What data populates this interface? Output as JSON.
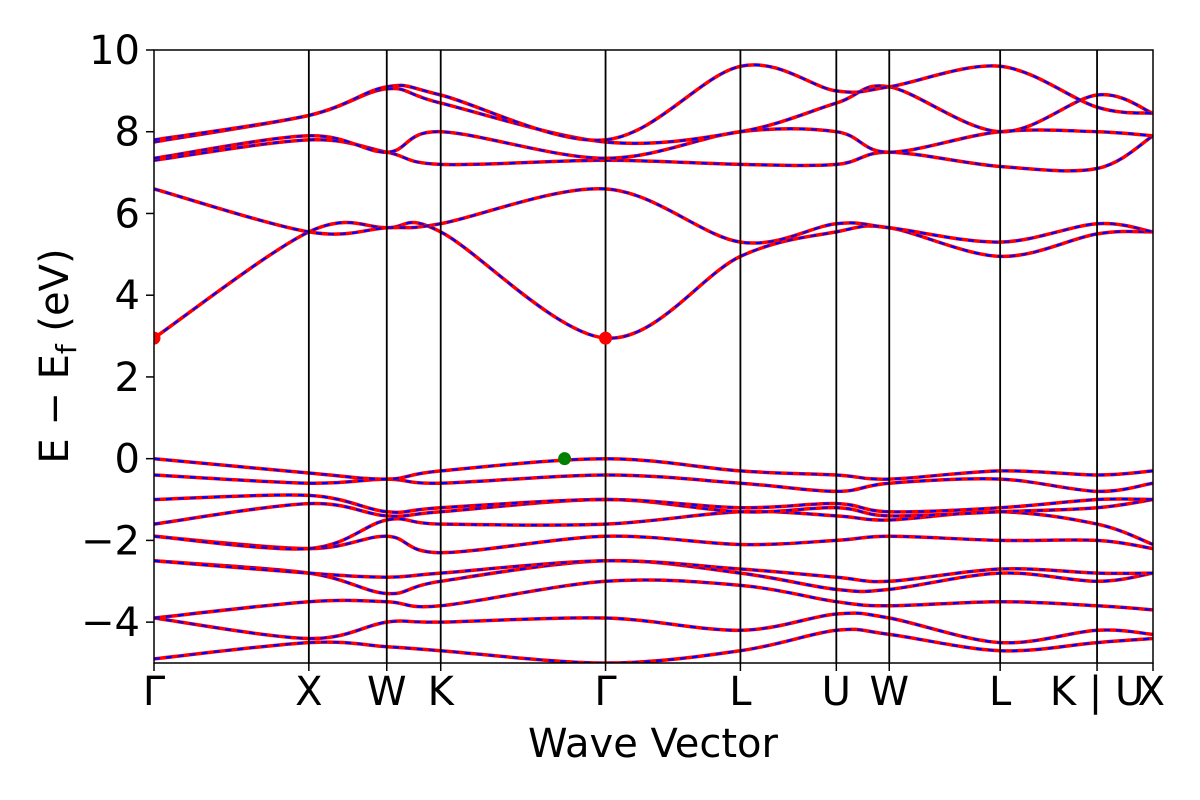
{
  "chart_data": {
    "type": "line",
    "title": "",
    "xlabel": "Wave Vector",
    "ylabel": "E − E",
    "ylabel_sub": "f",
    "ylabel_unit": " (eV)",
    "ylim": [
      -5,
      10
    ],
    "yticks": [
      -4,
      -2,
      0,
      2,
      4,
      6,
      8,
      10
    ],
    "ytick_labels": [
      "−4",
      "−2",
      "0",
      "2",
      "4",
      "6",
      "8",
      "10"
    ],
    "grid": false,
    "kpath": [
      {
        "label": "Γ",
        "k": 0.0
      },
      {
        "label": "X",
        "k": 0.155
      },
      {
        "label": "W",
        "k": 0.233
      },
      {
        "label": "K",
        "k": 0.287
      },
      {
        "label": "Γ",
        "k": 0.452
      },
      {
        "label": "L",
        "k": 0.587
      },
      {
        "label": "U",
        "k": 0.683
      },
      {
        "label": "W",
        "k": 0.736
      },
      {
        "label": "L",
        "k": 0.847
      },
      {
        "label": "K | U",
        "k": 0.944
      },
      {
        "label": "X",
        "k": 1.0
      }
    ],
    "colors": {
      "line_a": "#ff0000",
      "line_b": "#0000ff",
      "vbm": "#008000",
      "cbm": "#ff0000"
    },
    "vbm_point": {
      "k": 0.411,
      "E": 0.0
    },
    "cbm_points": [
      {
        "k": 0.0,
        "E": 2.95
      },
      {
        "k": 0.452,
        "E": 2.95
      }
    ],
    "bands": [
      [
        [
          0,
          -4.9
        ],
        [
          0.155,
          -4.5
        ],
        [
          0.233,
          -4.6
        ],
        [
          0.287,
          -4.7
        ],
        [
          0.452,
          -5.0
        ],
        [
          0.587,
          -4.7
        ],
        [
          0.683,
          -4.2
        ],
        [
          0.736,
          -4.3
        ],
        [
          0.847,
          -4.7
        ],
        [
          0.944,
          -4.5
        ],
        [
          1,
          -4.4
        ]
      ],
      [
        [
          0,
          -3.9
        ],
        [
          0.155,
          -4.4
        ],
        [
          0.233,
          -4.0
        ],
        [
          0.287,
          -4.0
        ],
        [
          0.452,
          -3.9
        ],
        [
          0.587,
          -4.2
        ],
        [
          0.683,
          -3.8
        ],
        [
          0.736,
          -3.9
        ],
        [
          0.847,
          -4.5
        ],
        [
          0.944,
          -4.2
        ],
        [
          1,
          -4.3
        ]
      ],
      [
        [
          0,
          -3.9
        ],
        [
          0.155,
          -3.5
        ],
        [
          0.233,
          -3.5
        ],
        [
          0.287,
          -3.6
        ],
        [
          0.452,
          -3.0
        ],
        [
          0.587,
          -3.1
        ],
        [
          0.683,
          -3.5
        ],
        [
          0.736,
          -3.6
        ],
        [
          0.847,
          -3.5
        ],
        [
          0.944,
          -3.6
        ],
        [
          1,
          -3.7
        ]
      ],
      [
        [
          0,
          -2.5
        ],
        [
          0.155,
          -2.8
        ],
        [
          0.233,
          -3.3
        ],
        [
          0.287,
          -3.0
        ],
        [
          0.452,
          -2.5
        ],
        [
          0.587,
          -2.8
        ],
        [
          0.683,
          -3.2
        ],
        [
          0.736,
          -3.2
        ],
        [
          0.847,
          -2.8
        ],
        [
          0.944,
          -3.0
        ],
        [
          1,
          -2.8
        ]
      ],
      [
        [
          0,
          -2.5
        ],
        [
          0.155,
          -2.8
        ],
        [
          0.233,
          -2.9
        ],
        [
          0.287,
          -2.8
        ],
        [
          0.452,
          -2.5
        ],
        [
          0.587,
          -2.7
        ],
        [
          0.683,
          -2.9
        ],
        [
          0.736,
          -3.0
        ],
        [
          0.847,
          -2.7
        ],
        [
          0.944,
          -2.8
        ],
        [
          1,
          -2.8
        ]
      ],
      [
        [
          0,
          -1.9
        ],
        [
          0.155,
          -2.2
        ],
        [
          0.233,
          -1.9
        ],
        [
          0.287,
          -2.3
        ],
        [
          0.452,
          -1.9
        ],
        [
          0.587,
          -2.1
        ],
        [
          0.683,
          -2.0
        ],
        [
          0.736,
          -1.9
        ],
        [
          0.847,
          -2.0
        ],
        [
          0.944,
          -2.0
        ],
        [
          1,
          -2.2
        ]
      ],
      [
        [
          0,
          -1.9
        ],
        [
          0.155,
          -2.2
        ],
        [
          0.233,
          -1.5
        ],
        [
          0.287,
          -1.6
        ],
        [
          0.452,
          -1.6
        ],
        [
          0.587,
          -1.3
        ],
        [
          0.683,
          -1.4
        ],
        [
          0.736,
          -1.5
        ],
        [
          0.847,
          -1.3
        ],
        [
          0.944,
          -1.6
        ],
        [
          1,
          -2.1
        ]
      ],
      [
        [
          0,
          -1.6
        ],
        [
          0.155,
          -1.1
        ],
        [
          0.233,
          -1.4
        ],
        [
          0.287,
          -1.3
        ],
        [
          0.452,
          -1.0
        ],
        [
          0.587,
          -1.3
        ],
        [
          0.683,
          -1.2
        ],
        [
          0.736,
          -1.4
        ],
        [
          0.847,
          -1.3
        ],
        [
          0.944,
          -1.2
        ],
        [
          1,
          -1.0
        ]
      ],
      [
        [
          0,
          -1.0
        ],
        [
          0.155,
          -0.9
        ],
        [
          0.233,
          -1.3
        ],
        [
          0.287,
          -1.2
        ],
        [
          0.452,
          -1.0
        ],
        [
          0.587,
          -1.2
        ],
        [
          0.683,
          -1.1
        ],
        [
          0.736,
          -1.3
        ],
        [
          0.847,
          -1.2
        ],
        [
          0.944,
          -1.0
        ],
        [
          1,
          -1.0
        ]
      ],
      [
        [
          0,
          -0.4
        ],
        [
          0.155,
          -0.6
        ],
        [
          0.233,
          -0.5
        ],
        [
          0.287,
          -0.6
        ],
        [
          0.452,
          -0.4
        ],
        [
          0.587,
          -0.6
        ],
        [
          0.683,
          -0.8
        ],
        [
          0.736,
          -0.6
        ],
        [
          0.847,
          -0.5
        ],
        [
          0.944,
          -0.8
        ],
        [
          1,
          -0.6
        ]
      ],
      [
        [
          0,
          0.0
        ],
        [
          0.155,
          -0.35
        ],
        [
          0.233,
          -0.5
        ],
        [
          0.287,
          -0.3
        ],
        [
          0.452,
          0.0
        ],
        [
          0.587,
          -0.3
        ],
        [
          0.683,
          -0.4
        ],
        [
          0.736,
          -0.5
        ],
        [
          0.847,
          -0.3
        ],
        [
          0.944,
          -0.4
        ],
        [
          1,
          -0.3
        ]
      ],
      [
        [
          0,
          2.95
        ],
        [
          0.155,
          5.55
        ],
        [
          0.233,
          5.65
        ],
        [
          0.287,
          5.55
        ],
        [
          0.452,
          2.95
        ],
        [
          0.587,
          4.95
        ],
        [
          0.683,
          5.55
        ],
        [
          0.736,
          5.65
        ],
        [
          0.847,
          4.95
        ],
        [
          0.944,
          5.5
        ],
        [
          1,
          5.55
        ]
      ],
      [
        [
          0,
          6.6
        ],
        [
          0.155,
          5.55
        ],
        [
          0.233,
          5.65
        ],
        [
          0.287,
          5.75
        ],
        [
          0.452,
          6.6
        ],
        [
          0.587,
          5.3
        ],
        [
          0.683,
          5.75
        ],
        [
          0.736,
          5.65
        ],
        [
          0.847,
          5.3
        ],
        [
          0.944,
          5.75
        ],
        [
          1,
          5.55
        ]
      ],
      [
        [
          0,
          7.3
        ],
        [
          0.155,
          7.8
        ],
        [
          0.233,
          7.5
        ],
        [
          0.287,
          7.2
        ],
        [
          0.452,
          7.3
        ],
        [
          0.587,
          7.2
        ],
        [
          0.683,
          7.2
        ],
        [
          0.736,
          7.5
        ],
        [
          0.847,
          7.15
        ],
        [
          0.944,
          7.1
        ],
        [
          1,
          7.9
        ]
      ],
      [
        [
          0,
          7.35
        ],
        [
          0.155,
          7.9
        ],
        [
          0.233,
          7.5
        ],
        [
          0.287,
          8.0
        ],
        [
          0.452,
          7.35
        ],
        [
          0.587,
          8.0
        ],
        [
          0.683,
          8.0
        ],
        [
          0.736,
          7.5
        ],
        [
          0.847,
          8.0
        ],
        [
          0.944,
          8.0
        ],
        [
          1,
          7.9
        ]
      ],
      [
        [
          0,
          7.75
        ],
        [
          0.155,
          8.4
        ],
        [
          0.233,
          9.05
        ],
        [
          0.287,
          8.7
        ],
        [
          0.452,
          7.75
        ],
        [
          0.587,
          8.0
        ],
        [
          0.683,
          8.7
        ],
        [
          0.736,
          9.1
        ],
        [
          0.847,
          8.0
        ],
        [
          0.944,
          8.9
        ],
        [
          1,
          8.45
        ]
      ],
      [
        [
          0,
          7.8
        ],
        [
          0.155,
          8.4
        ],
        [
          0.233,
          9.1
        ],
        [
          0.287,
          8.9
        ],
        [
          0.452,
          7.8
        ],
        [
          0.587,
          9.6
        ],
        [
          0.683,
          9.0
        ],
        [
          0.736,
          9.1
        ],
        [
          0.847,
          9.6
        ],
        [
          0.944,
          8.6
        ],
        [
          1,
          8.45
        ]
      ]
    ]
  }
}
